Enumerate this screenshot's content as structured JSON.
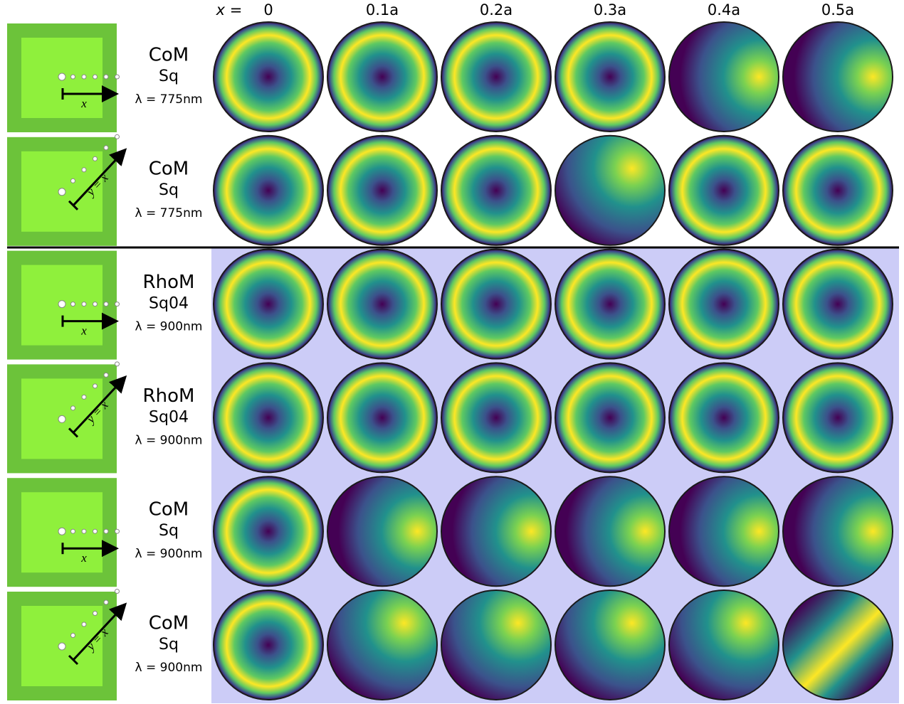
{
  "header": {
    "x_label": "x =",
    "columns": [
      "0",
      "0.1a",
      "0.2a",
      "0.3a",
      "0.4a",
      "0.5a"
    ]
  },
  "rows": [
    {
      "name": "CoM",
      "lattice": "Sq",
      "wavelength": "λ = 775nm",
      "direction": "x"
    },
    {
      "name": "CoM",
      "lattice": "Sq",
      "wavelength": "λ = 775nm",
      "direction": "y = x"
    },
    {
      "name": "RhoM",
      "lattice": "Sq04",
      "wavelength": "λ = 900nm",
      "direction": "x"
    },
    {
      "name": "RhoM",
      "lattice": "Sq04",
      "wavelength": "λ = 900nm",
      "direction": "y = x"
    },
    {
      "name": "CoM",
      "lattice": "Sq",
      "wavelength": "λ = 900nm",
      "direction": "x"
    },
    {
      "name": "CoM",
      "lattice": "Sq",
      "wavelength": "λ = 900nm",
      "direction": "y = x"
    }
  ]
}
